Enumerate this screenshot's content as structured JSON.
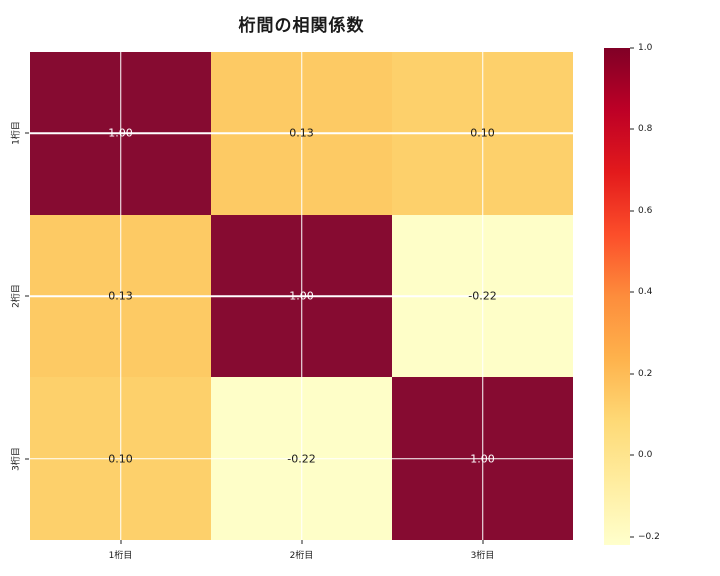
{
  "figure": {
    "background": "#ffffff"
  },
  "chart_data": {
    "type": "heatmap",
    "title": "桁間の相関係数",
    "categories": [
      "1桁目",
      "2桁目",
      "3桁目"
    ],
    "matrix": [
      [
        1.0,
        0.13,
        0.1
      ],
      [
        0.13,
        1.0,
        -0.22
      ],
      [
        0.1,
        -0.22,
        1.0
      ]
    ],
    "cell_labels": [
      [
        "1.00",
        "0.13",
        "0.10"
      ],
      [
        "0.13",
        "1.00",
        "-0.22"
      ],
      [
        "0.10",
        "-0.22",
        "1.00"
      ]
    ],
    "cell_colors": [
      [
        "#860b31",
        "#fdca64",
        "#fdd06b"
      ],
      [
        "#fdca64",
        "#860b31",
        "#fefec8"
      ],
      [
        "#fdd06b",
        "#fefec8",
        "#860b31"
      ]
    ],
    "cell_text_colors": [
      [
        "#ffffff",
        "#1a1a1a",
        "#1a1a1a"
      ],
      [
        "#1a1a1a",
        "#ffffff",
        "#1a1a1a"
      ],
      [
        "#1a1a1a",
        "#1a1a1a",
        "#ffffff"
      ]
    ],
    "grid": true,
    "gridline_color": "#ffffff",
    "colormap": {
      "name": "YlOrRd",
      "stops": [
        "#ffffcc",
        "#ffeda0",
        "#fed976",
        "#feb24c",
        "#fd8d3c",
        "#fc4e2a",
        "#e31a1c",
        "#bd0026",
        "#800026"
      ]
    },
    "colorbar": {
      "vmin": -0.22,
      "vmax": 1.0,
      "ticks": [
        {
          "value": 1.0,
          "label": "1.0"
        },
        {
          "value": 0.8,
          "label": "0.8"
        },
        {
          "value": 0.6,
          "label": "0.6"
        },
        {
          "value": 0.4,
          "label": "0.4"
        },
        {
          "value": 0.2,
          "label": "0.2"
        },
        {
          "value": 0.0,
          "label": "0.0"
        },
        {
          "value": -0.2,
          "label": "−0.2"
        }
      ]
    }
  }
}
